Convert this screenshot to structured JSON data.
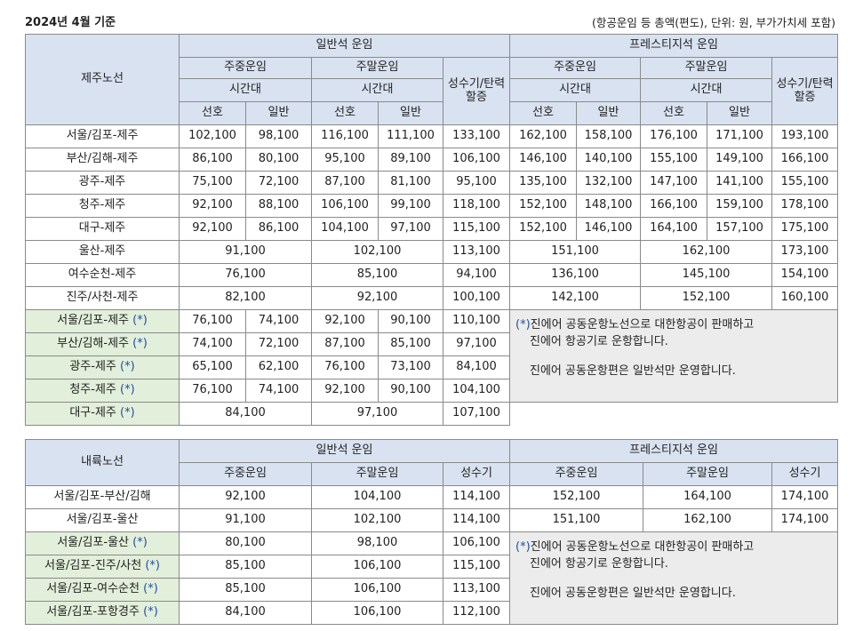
{
  "header": {
    "date": "2024년 4월 기준",
    "note": "(항공운임 등 총액(편도), 단위: 원, 부가가치세 포함)"
  },
  "jeju": {
    "route_header": "제주노선",
    "economy": "일반석 운임",
    "prestige": "프레스티지석 운임",
    "weekday": "주중운임",
    "weekend": "주말운임",
    "peak": "성수기/탄력할증",
    "timeslot": "시간대",
    "preferred": "선호",
    "normal": "일반",
    "rows": [
      {
        "route": "서울/김포-제주",
        "v": [
          "102,100",
          "98,100",
          "116,100",
          "111,100",
          "133,100",
          "162,100",
          "158,100",
          "176,100",
          "171,100",
          "193,100"
        ]
      },
      {
        "route": "부산/김해-제주",
        "v": [
          "86,100",
          "80,100",
          "95,100",
          "89,100",
          "106,100",
          "146,100",
          "140,100",
          "155,100",
          "149,100",
          "166,100"
        ]
      },
      {
        "route": "광주-제주",
        "v": [
          "75,100",
          "72,100",
          "87,100",
          "81,100",
          "95,100",
          "135,100",
          "132,100",
          "147,100",
          "141,100",
          "155,100"
        ]
      },
      {
        "route": "청주-제주",
        "v": [
          "92,100",
          "88,100",
          "106,100",
          "99,100",
          "118,100",
          "152,100",
          "148,100",
          "166,100",
          "159,100",
          "178,100"
        ]
      },
      {
        "route": "대구-제주",
        "v": [
          "92,100",
          "86,100",
          "104,100",
          "97,100",
          "115,100",
          "152,100",
          "146,100",
          "164,100",
          "157,100",
          "175,100"
        ]
      }
    ],
    "merged_rows": [
      {
        "route": "울산-제주",
        "v": [
          "91,100",
          "102,100",
          "113,100",
          "151,100",
          "162,100",
          "173,100"
        ]
      },
      {
        "route": "여수순천-제주",
        "v": [
          "76,100",
          "85,100",
          "94,100",
          "136,100",
          "145,100",
          "154,100"
        ]
      },
      {
        "route": "진주/사천-제주",
        "v": [
          "82,100",
          "92,100",
          "100,100",
          "142,100",
          "152,100",
          "160,100"
        ]
      }
    ],
    "codeshare_rows": [
      {
        "route": "서울/김포-제주",
        "v": [
          "76,100",
          "74,100",
          "92,100",
          "90,100",
          "110,100"
        ]
      },
      {
        "route": "부산/김해-제주",
        "v": [
          "74,100",
          "72,100",
          "87,100",
          "85,100",
          "97,100"
        ]
      },
      {
        "route": "광주-제주",
        "v": [
          "65,100",
          "62,100",
          "76,100",
          "73,100",
          "84,100"
        ]
      },
      {
        "route": "청주-제주",
        "v": [
          "76,100",
          "74,100",
          "92,100",
          "90,100",
          "104,100"
        ]
      }
    ],
    "codeshare_last": {
      "route": "대구-제주",
      "v": [
        "84,100",
        "97,100",
        "107,100"
      ]
    },
    "asterisk": "(*)",
    "note_line1": "진에어 공동운항노선으로 대한항공이 판매하고",
    "note_line2": "진에어 항공기로 운항합니다.",
    "note_line3": "진에어 공동운항편은 일반석만 운영합니다."
  },
  "domestic": {
    "route_header": "내륙노선",
    "economy": "일반석 운임",
    "prestige": "프레스티지석 운임",
    "weekday": "주중운임",
    "weekend": "주말운임",
    "peak": "성수기",
    "rows": [
      {
        "route": "서울/김포-부산/김해",
        "v": [
          "92,100",
          "104,100",
          "114,100",
          "152,100",
          "164,100",
          "174,100"
        ]
      },
      {
        "route": "서울/김포-울산",
        "v": [
          "91,100",
          "102,100",
          "114,100",
          "151,100",
          "162,100",
          "174,100"
        ]
      }
    ],
    "codeshare_rows": [
      {
        "route": "서울/김포-울산 ",
        "v": [
          "80,100",
          "98,100",
          "106,100"
        ]
      },
      {
        "route": "서울/김포-진주/사천",
        "v": [
          "85,100",
          "106,100",
          "115,100"
        ]
      },
      {
        "route": "서울/김포-여수순천",
        "v": [
          "85,100",
          "106,100",
          "113,100"
        ]
      },
      {
        "route": "서울/김포-포항경주",
        "v": [
          "84,100",
          "106,100",
          "112,100"
        ]
      }
    ],
    "asterisk": "(*)",
    "note_line1": "진에어 공동운항노선으로 대한항공이 판매하고",
    "note_line2": "진에어 항공기로 운항합니다.",
    "note_line3": "진에어 공동운항편은 일반석만 운영합니다."
  }
}
